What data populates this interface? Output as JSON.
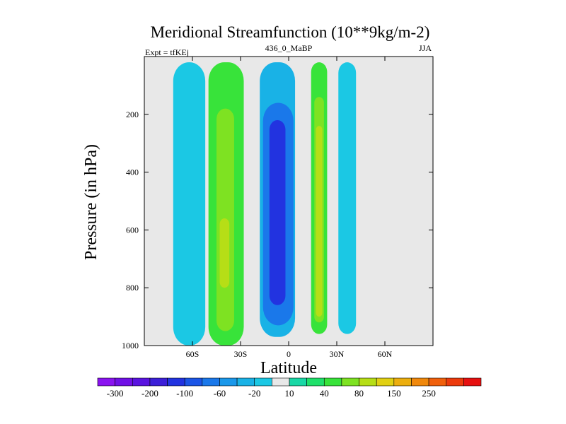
{
  "chart_data": {
    "type": "heatmap",
    "title": "Meridional Streamfunction (10**9kg/m-2)",
    "left_subtitle": "Expt = tfKEj",
    "center_subtitle": "436_0_MaBP",
    "right_subtitle": "JJA",
    "xlabel": "Latitude",
    "ylabel": "Pressure (in hPa)",
    "xlim": [
      -90,
      90
    ],
    "ylim": [
      1000,
      0
    ],
    "x_ticks": [
      {
        "value": -60,
        "label": "60S"
      },
      {
        "value": -30,
        "label": "30S"
      },
      {
        "value": 0,
        "label": "0"
      },
      {
        "value": 30,
        "label": "30N"
      },
      {
        "value": 60,
        "label": "60N"
      }
    ],
    "y_ticks": [
      {
        "value": 200,
        "label": "200"
      },
      {
        "value": 400,
        "label": "400"
      },
      {
        "value": 600,
        "label": "600"
      },
      {
        "value": 800,
        "label": "800"
      },
      {
        "value": 1000,
        "label": "1000"
      }
    ],
    "colorbar": {
      "colors": [
        "#8a13f0",
        "#7010e6",
        "#5a13e0",
        "#3c1fd8",
        "#2233e0",
        "#1b55e6",
        "#1a78ea",
        "#1a98ea",
        "#19b2e6",
        "#1bc8e4",
        "#e8e8e8",
        "#19d8a6",
        "#1fe06a",
        "#38e33a",
        "#7ee222",
        "#b6de16",
        "#e1d012",
        "#ecae0e",
        "#f0880c",
        "#f0600c",
        "#ec3a0c",
        "#e61010"
      ],
      "labels": [
        {
          "after_index": 0,
          "text": "-300"
        },
        {
          "after_index": 2,
          "text": "-200"
        },
        {
          "after_index": 4,
          "text": "-100"
        },
        {
          "after_index": 6,
          "text": "-60"
        },
        {
          "after_index": 8,
          "text": "-20"
        },
        {
          "after_index": 10,
          "text": "10"
        },
        {
          "after_index": 12,
          "text": "40"
        },
        {
          "after_index": 14,
          "text": "80"
        },
        {
          "after_index": 16,
          "text": "150"
        },
        {
          "after_index": 18,
          "text": "250"
        }
      ]
    },
    "cells": [
      {
        "lat_min": -72,
        "lat_max": -52,
        "p_top": 20,
        "p_bottom": 1000,
        "value": -20
      },
      {
        "lat_min": -50,
        "lat_max": -28,
        "p_top": 20,
        "p_bottom": 1000,
        "value": 20
      },
      {
        "lat_min": -45,
        "lat_max": -34,
        "p_top": 180,
        "p_bottom": 950,
        "value": 40
      },
      {
        "lat_min": -43,
        "lat_max": -37,
        "p_top": 560,
        "p_bottom": 800,
        "value": 70
      },
      {
        "lat_min": -18,
        "lat_max": 4,
        "p_top": 20,
        "p_bottom": 970,
        "value": -30
      },
      {
        "lat_min": -16,
        "lat_max": 3,
        "p_top": 160,
        "p_bottom": 930,
        "value": -80
      },
      {
        "lat_min": -12,
        "lat_max": -2,
        "p_top": 220,
        "p_bottom": 860,
        "value": -150
      },
      {
        "lat_min": 14,
        "lat_max": 24,
        "p_top": 20,
        "p_bottom": 960,
        "value": 20
      },
      {
        "lat_min": 16,
        "lat_max": 22,
        "p_top": 140,
        "p_bottom": 920,
        "value": 40
      },
      {
        "lat_min": 17,
        "lat_max": 21,
        "p_top": 240,
        "p_bottom": 900,
        "value": 70
      },
      {
        "lat_min": 31,
        "lat_max": 42,
        "p_top": 20,
        "p_bottom": 960,
        "value": -20
      }
    ]
  }
}
